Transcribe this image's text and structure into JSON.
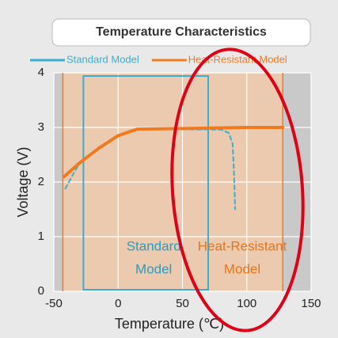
{
  "chart_data": {
    "type": "line",
    "title": "Temperature Characteristics",
    "x_label": "Temperature (℃)",
    "y_label": "Voltage (V)",
    "xlim": [
      -50,
      150
    ],
    "xticks": [
      -50,
      0,
      50,
      100,
      150
    ],
    "ylim": [
      0,
      4
    ],
    "yticks": [
      0,
      1,
      2,
      3,
      4
    ],
    "grid": true,
    "legend": "top",
    "series": [
      {
        "name": "Standard Model",
        "color": "#3aaecf",
        "dashed": true,
        "x": [
          -41,
          -36,
          -30,
          0,
          15,
          80,
          86,
          89,
          90,
          91
        ],
        "values": [
          1.88,
          2.1,
          2.35,
          2.85,
          2.97,
          2.96,
          2.9,
          2.7,
          2.2,
          1.5
        ]
      },
      {
        "name": "Heat-Resistant Model",
        "color": "#f07a20",
        "dashed": false,
        "x": [
          -42,
          -30,
          -15,
          0,
          15,
          50,
          100,
          128
        ],
        "values": [
          2.1,
          2.35,
          2.62,
          2.85,
          2.97,
          2.98,
          3.0,
          3.0
        ]
      }
    ],
    "standard_range": [
      -27,
      70
    ],
    "heat_resistant_range": [
      -43,
      128
    ],
    "standard_label": [
      "Standard",
      "Model"
    ],
    "heat_label": [
      "Heat-Resistant",
      "Model"
    ]
  }
}
